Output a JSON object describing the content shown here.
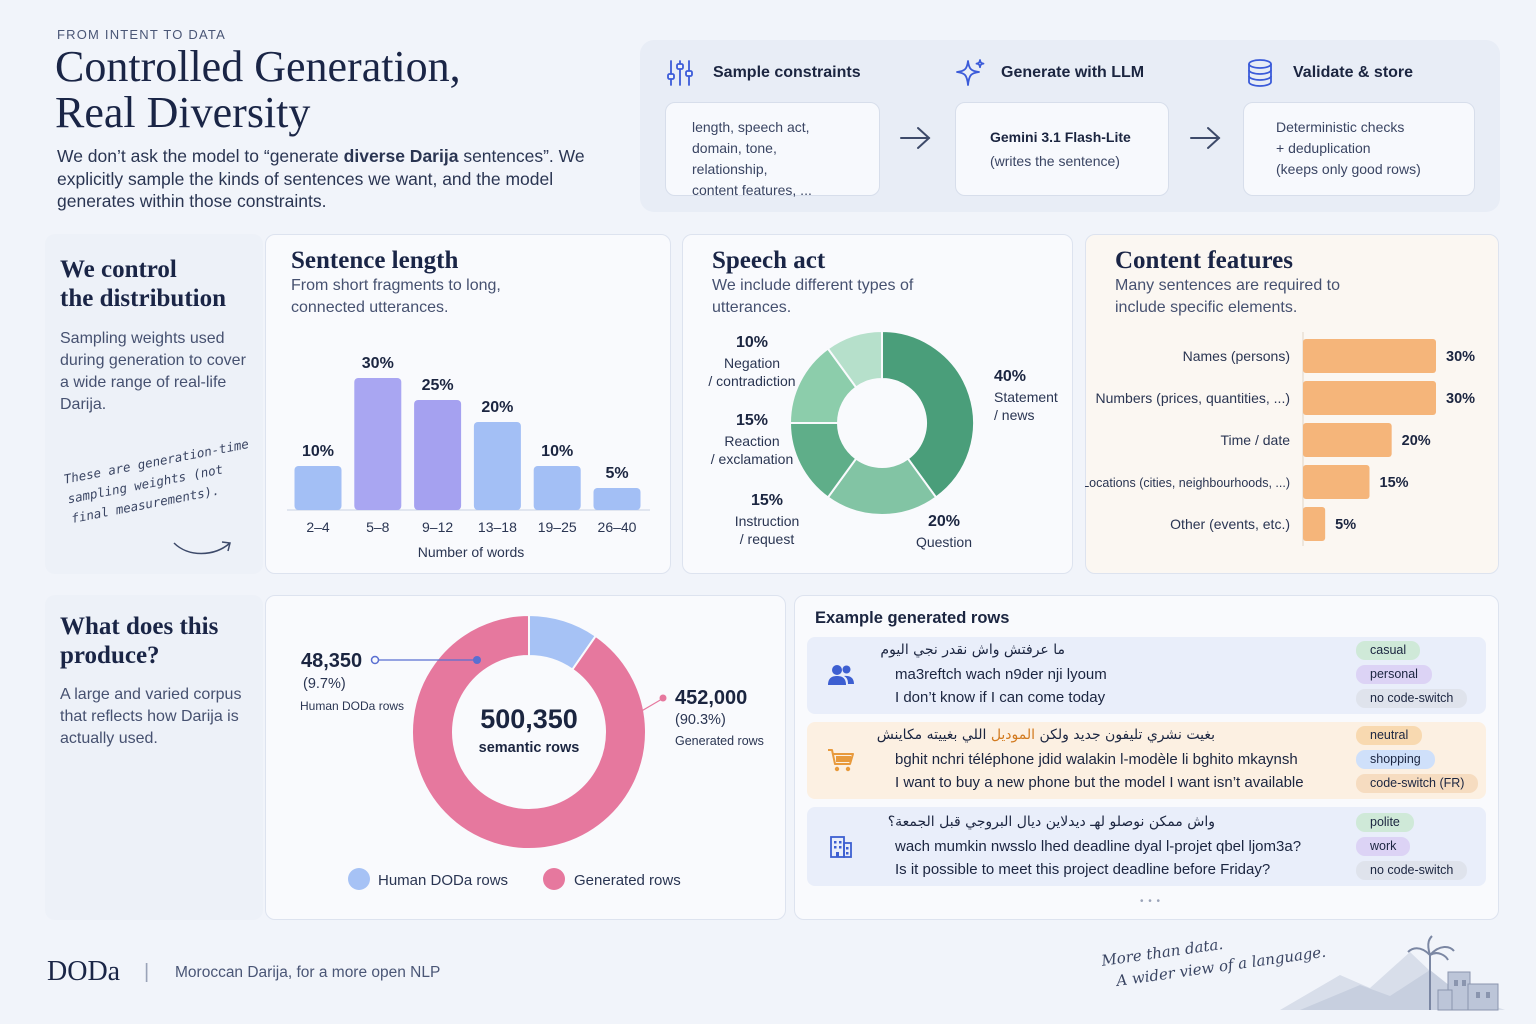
{
  "header": {
    "eyebrow": "FROM INTENT TO DATA",
    "title_line1": "Controlled Generation,",
    "title_line2": "Real Diversity",
    "lead_pre": "We don’t ask the model to “generate ",
    "lead_bold": "diverse Darija",
    "lead_post": " sentences”. We explicitly sample the kinds of sentences we want, and the model generates within those constraints."
  },
  "pipeline": {
    "steps": [
      {
        "title": "Sample constraints",
        "icon": "sliders-icon",
        "line1": "length, speech act,",
        "line2": "domain, tone, relationship,",
        "line3": "content features, ..."
      },
      {
        "title": "Generate with LLM",
        "icon": "sparkle-icon",
        "line1": "Gemini 3.1 Flash-Lite",
        "line2": "(writes the sentence)"
      },
      {
        "title": "Validate & store",
        "icon": "database-icon",
        "line1": "Deterministic checks",
        "line2": "+ deduplication",
        "line3": "(keeps only good rows)"
      }
    ]
  },
  "distribution": {
    "title_line1": "We control",
    "title_line2": "the distribution",
    "desc": "Sampling weights used during generation to cover a wide range of real-life Darija.",
    "note": "These are generation-time sampling weights (not final measurements)."
  },
  "produce": {
    "title_line1": "What does this",
    "title_line2": "produce?",
    "desc": "A large and varied corpus that reflects how Darija is actually used."
  },
  "examples": {
    "title": "Example generated rows",
    "rows": [
      {
        "icon": "people-icon",
        "arabic": "ما عرفتش واش نقدر نجي اليوم",
        "latin": "ma3reftch wach n9der nji lyoum",
        "english": "I don’t know if I can come today",
        "tags": [
          "casual",
          "personal",
          "no code-switch"
        ]
      },
      {
        "icon": "cart-icon",
        "arabic_pre": "بغيت نشري تليفون جديد ولكن ",
        "arabic_hl": "الموديل",
        "arabic_post": " اللي بغييته مكاينش",
        "latin": "bghit nchri téléphone jdid walakin l-modèle li bghito mkaynsh",
        "english": "I want to buy a new phone but the model I want isn’t available",
        "tags": [
          "neutral",
          "shopping",
          "code-switch (FR)"
        ]
      },
      {
        "icon": "building-icon",
        "arabic": "واش ممكن نوصلو لهـ ديدلاين ديال البروجي قبل الجمعة؟",
        "latin": "wach mumkin nwsslo lhed deadline dyal l-projet qbel ljom3a?",
        "english": "Is it possible to meet this project deadline before Friday?",
        "tags": [
          "polite",
          "work",
          "no code-switch"
        ]
      }
    ],
    "more": "• • •"
  },
  "footer": {
    "brand": "DODa",
    "sep": "|",
    "tagline": "Moroccan Darija, for a more open NLP",
    "motto_line1": "More than data.",
    "motto_line2": "A wider view of a language."
  },
  "colors": {
    "bar": "#a9a6f2",
    "bar_light": "#a3bff5",
    "green_dark": "#4a9e7a",
    "pink": "#e6789e",
    "blue_slice": "#a6c2f5",
    "orange": "#f5b57a"
  },
  "chart_data": [
    {
      "type": "bar",
      "title": "Sentence length",
      "subtitle": "From short fragments to long, connected utterances.",
      "categories": [
        "2–4",
        "5–8",
        "9–12",
        "13–18",
        "19–25",
        "26–40"
      ],
      "values": [
        10,
        30,
        25,
        20,
        10,
        5
      ],
      "value_labels": [
        "10%",
        "30%",
        "25%",
        "20%",
        "10%",
        "5%"
      ],
      "xlabel": "Number of words",
      "ylim": [
        0,
        30
      ]
    },
    {
      "type": "pie",
      "title": "Speech act",
      "subtitle": "We include different types of utterances.",
      "categories": [
        "Statement / news",
        "Question",
        "Instruction / request",
        "Reaction / exclamation",
        "Negation / contradiction"
      ],
      "values": [
        40,
        20,
        15,
        15,
        10
      ],
      "label_lines": [
        [
          "Statement",
          "/ news"
        ],
        [
          "Question"
        ],
        [
          "Instruction",
          "/ request"
        ],
        [
          "Reaction",
          "/ exclamation"
        ],
        [
          "Negation",
          "/ contradiction"
        ]
      ],
      "value_labels": [
        "40%",
        "20%",
        "15%",
        "15%",
        "10%"
      ],
      "colors": [
        "#4a9e7a",
        "#82c4a4",
        "#5fae89",
        "#8ccdab",
        "#b6e0cb"
      ]
    },
    {
      "type": "bar",
      "orientation": "horizontal",
      "title": "Content features",
      "subtitle": "Many sentences are required to include specific elements.",
      "categories": [
        "Names (persons)",
        "Numbers (prices, quantities, ...)",
        "Time / date",
        "Locations (cities, neighbourhoods, ...)",
        "Other (events, etc.)"
      ],
      "values": [
        30,
        30,
        20,
        15,
        5
      ],
      "value_labels": [
        "30%",
        "30%",
        "20%",
        "15%",
        "5%"
      ],
      "ylim": [
        0,
        30
      ]
    },
    {
      "type": "pie",
      "categories": [
        "Human DODa rows",
        "Generated rows"
      ],
      "values": [
        48350,
        452000
      ],
      "value_labels": [
        "48,350",
        "452,000"
      ],
      "percent_labels": [
        "(9.7%)",
        "(90.3%)"
      ],
      "callout_labels": [
        "Human DODa rows",
        "Generated rows"
      ],
      "legend": [
        "Human DODa rows",
        "Generated rows"
      ],
      "center_value": "500,350",
      "center_label": "semantic rows",
      "colors": [
        "#a6c2f5",
        "#e6789e"
      ]
    }
  ]
}
